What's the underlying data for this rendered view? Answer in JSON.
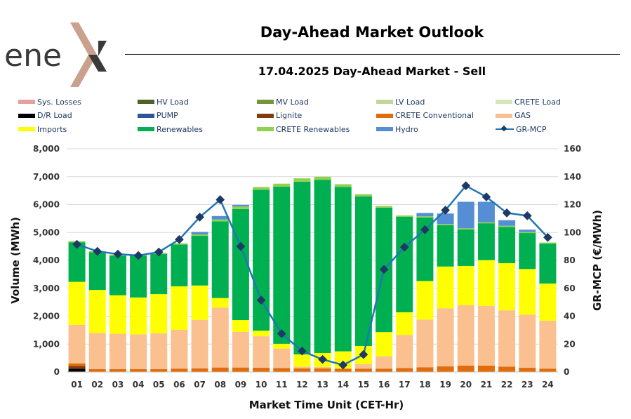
{
  "header": {
    "logo_text": "enex",
    "title": "Day-Ahead Market Outlook",
    "subtitle": "17.04.2025  Day-Ahead Market - Sell"
  },
  "legend": [
    {
      "label": "Sys. Losses",
      "color": "#e6a0a0",
      "kind": "bar"
    },
    {
      "label": "HV Load",
      "color": "#4e6228",
      "kind": "bar"
    },
    {
      "label": "MV Load",
      "color": "#77933c",
      "kind": "bar"
    },
    {
      "label": "LV Load",
      "color": "#c3d69b",
      "kind": "bar"
    },
    {
      "label": "CRETE Load",
      "color": "#d7e4bd",
      "kind": "bar"
    },
    {
      "label": "D/R Load",
      "color": "#000000",
      "kind": "bar"
    },
    {
      "label": "PUMP",
      "color": "#2f5597",
      "kind": "bar"
    },
    {
      "label": "Lignite",
      "color": "#843c0c",
      "kind": "bar"
    },
    {
      "label": "CRETE Conventional",
      "color": "#e36c09",
      "kind": "bar"
    },
    {
      "label": "GAS",
      "color": "#fac090",
      "kind": "bar"
    },
    {
      "label": "Imports",
      "color": "#ffff00",
      "kind": "bar"
    },
    {
      "label": "Renewables",
      "color": "#00b050",
      "kind": "bar"
    },
    {
      "label": "CRETE Renewables",
      "color": "#92d050",
      "kind": "bar"
    },
    {
      "label": "Hydro",
      "color": "#558ed5",
      "kind": "bar"
    },
    {
      "label": "GR-MCP",
      "color": "#1f77b4",
      "kind": "line"
    }
  ],
  "chart_data": {
    "type": "bar",
    "stacked": true,
    "categories": [
      "01",
      "02",
      "03",
      "04",
      "05",
      "06",
      "07",
      "08",
      "09",
      "10",
      "11",
      "12",
      "13",
      "14",
      "15",
      "16",
      "17",
      "18",
      "19",
      "20",
      "21",
      "22",
      "23",
      "24"
    ],
    "xlabel": "Market Time Unit (CET-Hr)",
    "ylabel": "Volume (MWh)",
    "y2label": "GR-MCP (€/MWh)",
    "ylim": [
      0,
      8000
    ],
    "y2lim": [
      0,
      160
    ],
    "yticks": [
      "0",
      "1,000",
      "2,000",
      "3,000",
      "4,000",
      "5,000",
      "6,000",
      "7,000",
      "8,000"
    ],
    "y2ticks": [
      "0",
      "20",
      "40",
      "60",
      "80",
      "100",
      "120",
      "140",
      "160"
    ],
    "grid": true,
    "series": [
      {
        "name": "D/R Load",
        "color": "#000000",
        "values": [
          120,
          0,
          0,
          0,
          0,
          0,
          0,
          0,
          0,
          0,
          0,
          0,
          0,
          0,
          0,
          0,
          0,
          0,
          0,
          0,
          0,
          0,
          0,
          0
        ]
      },
      {
        "name": "Lignite",
        "color": "#843c0c",
        "values": [
          100,
          0,
          0,
          0,
          0,
          0,
          0,
          0,
          0,
          0,
          0,
          0,
          0,
          0,
          0,
          0,
          0,
          0,
          0,
          0,
          0,
          0,
          0,
          0
        ]
      },
      {
        "name": "CRETE Conventional",
        "color": "#e36c09",
        "values": [
          90,
          100,
          100,
          100,
          100,
          120,
          130,
          160,
          160,
          150,
          140,
          130,
          130,
          120,
          120,
          120,
          140,
          170,
          200,
          230,
          230,
          190,
          150,
          120
        ]
      },
      {
        "name": "GAS",
        "color": "#fac090",
        "values": [
          1380,
          1300,
          1270,
          1250,
          1290,
          1390,
          1740,
          2150,
          1280,
          1130,
          700,
          60,
          50,
          0,
          160,
          440,
          1190,
          1710,
          2080,
          2160,
          2140,
          2020,
          1900,
          1720
        ]
      },
      {
        "name": "Imports",
        "color": "#ffff00",
        "values": [
          1540,
          1540,
          1380,
          1320,
          1400,
          1560,
          1230,
          340,
          420,
          200,
          170,
          440,
          500,
          620,
          650,
          870,
          810,
          1380,
          1500,
          1410,
          1640,
          1690,
          1640,
          1330
        ]
      },
      {
        "name": "Renewables",
        "color": "#00b050",
        "values": [
          1420,
          1350,
          1420,
          1500,
          1440,
          1500,
          1780,
          2750,
          3980,
          5050,
          5630,
          6190,
          6210,
          5890,
          5360,
          4460,
          3420,
          2280,
          1480,
          1310,
          1320,
          1300,
          1290,
          1430
        ]
      },
      {
        "name": "CRETE Renewables",
        "color": "#92d050",
        "values": [
          40,
          40,
          40,
          40,
          40,
          40,
          50,
          70,
          90,
          100,
          110,
          120,
          110,
          100,
          80,
          60,
          50,
          40,
          40,
          40,
          40,
          40,
          40,
          40
        ]
      },
      {
        "name": "Hydro",
        "color": "#558ed5",
        "values": [
          0,
          0,
          0,
          0,
          0,
          0,
          90,
          120,
          60,
          0,
          0,
          0,
          0,
          0,
          0,
          0,
          0,
          120,
          380,
          950,
          730,
          200,
          80,
          0
        ]
      },
      {
        "name": "GR-MCP",
        "color": "#1f77b4",
        "axis": "y2",
        "kind": "line",
        "values": [
          91.5,
          86.5,
          84.5,
          83.5,
          86,
          95,
          111,
          123.5,
          90,
          51.5,
          27.5,
          15,
          9,
          5,
          12.5,
          73.5,
          89.5,
          102,
          116,
          133.5,
          125.5,
          114,
          112,
          96.5
        ]
      }
    ]
  }
}
